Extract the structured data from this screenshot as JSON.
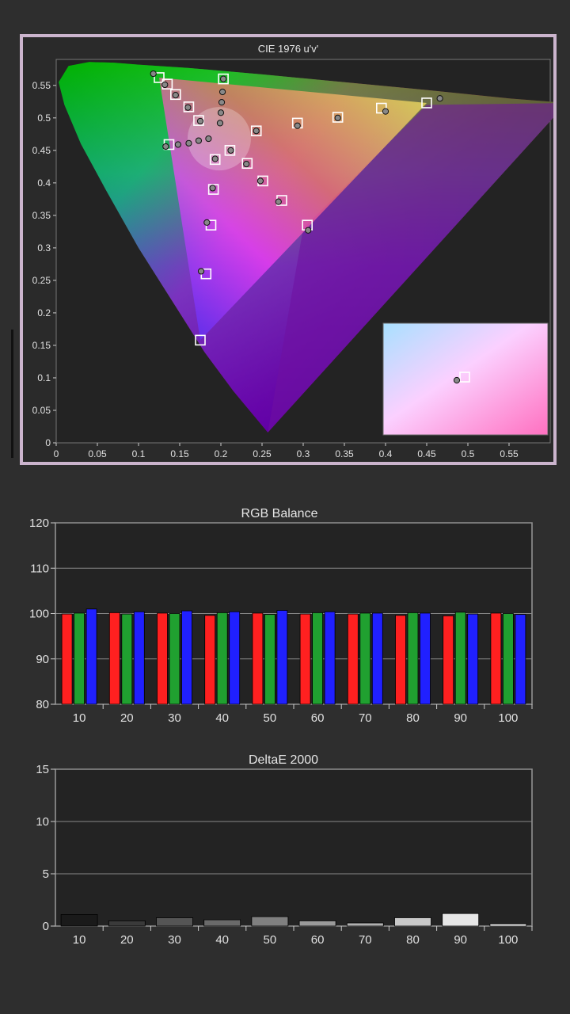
{
  "colors": {
    "background": "#2e2e2e",
    "panel_border": "#cbb4cd",
    "plot_bg": "#232323",
    "grid": "#8a8a8a",
    "red": "#ff2020",
    "green": "#20a030",
    "blue": "#2020ff"
  },
  "chart_data": [
    {
      "type": "scatter",
      "title": "CIE 1976 u'v'",
      "xlabel": "",
      "ylabel": "",
      "xlim": [
        0,
        0.6
      ],
      "ylim": [
        0,
        0.59
      ],
      "x_ticks": [
        "0",
        "0.05",
        "0.1",
        "0.15",
        "0.2",
        "0.25",
        "0.3",
        "0.35",
        "0.4",
        "0.45",
        "0.5",
        "0.55"
      ],
      "y_ticks": [
        "0",
        "0.05",
        "0.1",
        "0.15",
        "0.2",
        "0.25",
        "0.3",
        "0.35",
        "0.4",
        "0.45",
        "0.5",
        "0.55"
      ],
      "gamut_triangle": [
        [
          0.45,
          0.523
        ],
        [
          0.125,
          0.562
        ],
        [
          0.175,
          0.158
        ]
      ],
      "white_point": [
        0.198,
        0.468
      ],
      "series": [
        {
          "marker": "square",
          "points": [
            [
              0.125,
              0.562
            ],
            [
              0.135,
              0.552
            ],
            [
              0.145,
              0.536
            ],
            [
              0.161,
              0.517
            ],
            [
              0.173,
              0.496
            ],
            [
              0.45,
              0.523
            ],
            [
              0.395,
              0.515
            ],
            [
              0.342,
              0.501
            ],
            [
              0.293,
              0.492
            ],
            [
              0.243,
              0.48
            ],
            [
              0.175,
              0.158
            ],
            [
              0.182,
              0.26
            ],
            [
              0.188,
              0.335
            ],
            [
              0.191,
              0.39
            ],
            [
              0.193,
              0.436
            ],
            [
              0.203,
              0.56
            ],
            [
              0.137,
              0.459
            ],
            [
              0.211,
              0.45
            ],
            [
              0.232,
              0.43
            ],
            [
              0.251,
              0.403
            ],
            [
              0.274,
              0.373
            ],
            [
              0.305,
              0.335
            ]
          ]
        },
        {
          "marker": "circle",
          "points": [
            [
              0.118,
              0.568
            ],
            [
              0.132,
              0.551
            ],
            [
              0.145,
              0.535
            ],
            [
              0.16,
              0.516
            ],
            [
              0.175,
              0.495
            ],
            [
              0.466,
              0.53
            ],
            [
              0.4,
              0.51
            ],
            [
              0.342,
              0.5
            ],
            [
              0.293,
              0.488
            ],
            [
              0.243,
              0.48
            ],
            [
              0.176,
              0.264
            ],
            [
              0.183,
              0.339
            ],
            [
              0.19,
              0.392
            ],
            [
              0.193,
              0.437
            ],
            [
              0.203,
              0.56
            ],
            [
              0.202,
              0.54
            ],
            [
              0.201,
              0.524
            ],
            [
              0.2,
              0.508
            ],
            [
              0.199,
              0.492
            ],
            [
              0.133,
              0.456
            ],
            [
              0.148,
              0.459
            ],
            [
              0.161,
              0.461
            ],
            [
              0.173,
              0.465
            ],
            [
              0.185,
              0.468
            ],
            [
              0.212,
              0.45
            ],
            [
              0.231,
              0.429
            ],
            [
              0.248,
              0.403
            ],
            [
              0.27,
              0.371
            ],
            [
              0.306,
              0.327
            ]
          ]
        }
      ]
    },
    {
      "type": "bar",
      "title": "RGB Balance",
      "xlabel": "",
      "ylabel": "",
      "ylim": [
        80,
        120
      ],
      "y_ticks": [
        "80",
        "90",
        "100",
        "110",
        "120"
      ],
      "categories": [
        "10",
        "20",
        "30",
        "40",
        "50",
        "60",
        "70",
        "80",
        "90",
        "100"
      ],
      "series": [
        {
          "color": "#ff2020",
          "values": [
            99.9,
            100.2,
            100.1,
            99.6,
            100.1,
            99.9,
            99.9,
            99.6,
            99.5,
            100.1
          ]
        },
        {
          "color": "#20a030",
          "values": [
            100.1,
            99.9,
            100.0,
            100.2,
            99.8,
            100.2,
            100.1,
            100.2,
            100.3,
            100.0
          ]
        },
        {
          "color": "#2020ff",
          "values": [
            101.0,
            100.4,
            100.6,
            100.4,
            100.7,
            100.4,
            100.1,
            100.1,
            99.9,
            99.8
          ]
        }
      ]
    },
    {
      "type": "bar",
      "title": "DeltaE 2000",
      "xlabel": "",
      "ylabel": "",
      "ylim": [
        0,
        15
      ],
      "y_ticks": [
        "0",
        "5",
        "10",
        "15"
      ],
      "categories": [
        "10",
        "20",
        "30",
        "40",
        "50",
        "60",
        "70",
        "80",
        "90",
        "100"
      ],
      "values": [
        1.1,
        0.5,
        0.8,
        0.6,
        0.9,
        0.5,
        0.3,
        0.8,
        1.2,
        0.2
      ]
    }
  ]
}
